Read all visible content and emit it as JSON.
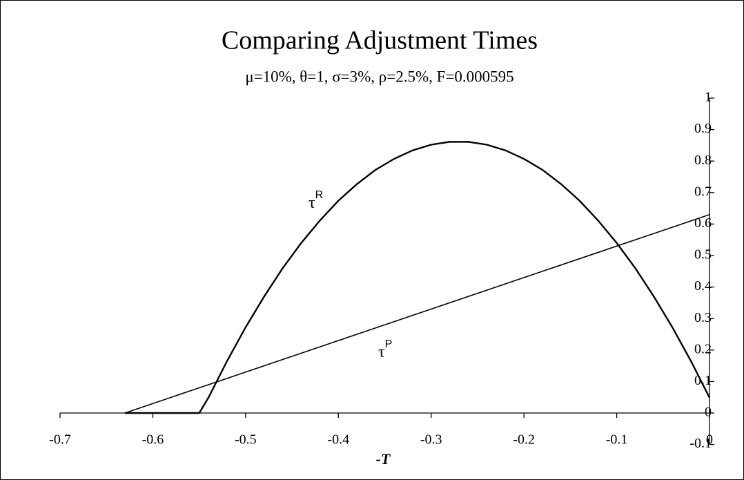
{
  "chart_data": {
    "type": "line",
    "title": "Comparing Adjustment Times",
    "subtitle": "μ=10%, θ=1, σ=3%, ρ=2.5%, F=0.000595",
    "x_label": "-T",
    "x": [
      -0.63,
      -0.55,
      -0.54,
      -0.52,
      -0.5,
      -0.48,
      -0.46,
      -0.44,
      -0.42,
      -0.4,
      -0.38,
      -0.36,
      -0.34,
      -0.32,
      -0.3,
      -0.28,
      -0.26,
      -0.24,
      -0.22,
      -0.2,
      -0.18,
      -0.16,
      -0.14,
      -0.12,
      -0.1,
      -0.08,
      -0.06,
      -0.04,
      -0.02,
      0
    ],
    "series": [
      {
        "label": {
          "base": "τ",
          "sup": "R"
        },
        "color": "#000000",
        "values": [
          0,
          0,
          0.049,
          0.165,
          0.272,
          0.37,
          0.46,
          0.54,
          0.611,
          0.674,
          0.727,
          0.772,
          0.807,
          0.834,
          0.852,
          0.861,
          0.861,
          0.852,
          0.834,
          0.807,
          0.772,
          0.727,
          0.674,
          0.611,
          0.54,
          0.46,
          0.37,
          0.272,
          0.165,
          0.049
        ]
      },
      {
        "label": {
          "base": "τ",
          "sup": "P"
        },
        "color": "#000000",
        "values": [
          0,
          0.08,
          0.09,
          0.11,
          0.13,
          0.15,
          0.17,
          0.19,
          0.21,
          0.23,
          0.25,
          0.27,
          0.29,
          0.31,
          0.33,
          0.35,
          0.37,
          0.39,
          0.41,
          0.43,
          0.45,
          0.47,
          0.49,
          0.51,
          0.53,
          0.55,
          0.57,
          0.59,
          0.61,
          0.63
        ]
      }
    ],
    "xlim": [
      -0.7,
      0
    ],
    "ylim": [
      -0.1,
      1
    ],
    "xticks": [
      -0.7,
      -0.6,
      -0.5,
      -0.4,
      -0.3,
      -0.2,
      -0.1,
      0
    ],
    "yticks": [
      -0.1,
      0,
      0.1,
      0.2,
      0.3,
      0.4,
      0.5,
      0.6,
      0.7,
      0.8,
      0.9,
      1
    ],
    "grid": false
  }
}
